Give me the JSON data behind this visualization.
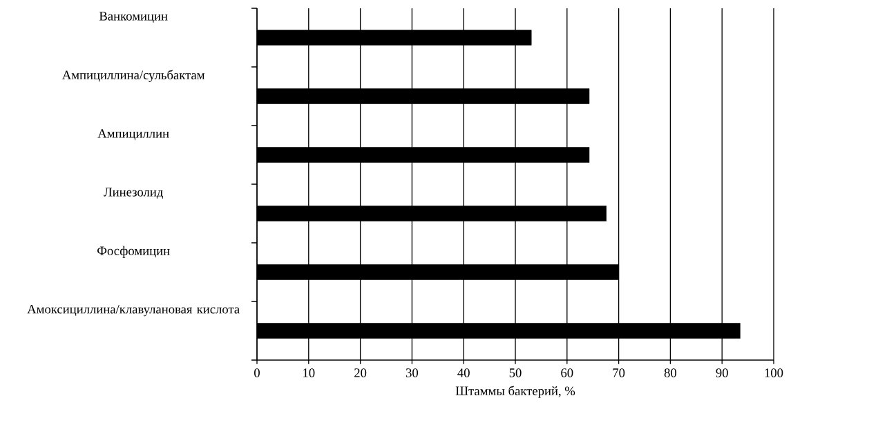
{
  "chart_data": {
    "type": "bar",
    "orientation": "horizontal",
    "xlabel": "Штаммы бактерий, %",
    "categories": [
      "Ванкомицин",
      "Ампициллина/сульбактам",
      "Ампициллин",
      "Линезолид",
      "Фосфомицин",
      "Амоксициллина/клавулановая кислота"
    ],
    "values": [
      53.1,
      64.3,
      64.3,
      67.6,
      70,
      93.5
    ],
    "color": "#000000",
    "xlim": [
      0,
      100
    ],
    "xticks": [
      0,
      10,
      20,
      30,
      40,
      50,
      60,
      70,
      80,
      90,
      100
    ],
    "grid": "x"
  }
}
